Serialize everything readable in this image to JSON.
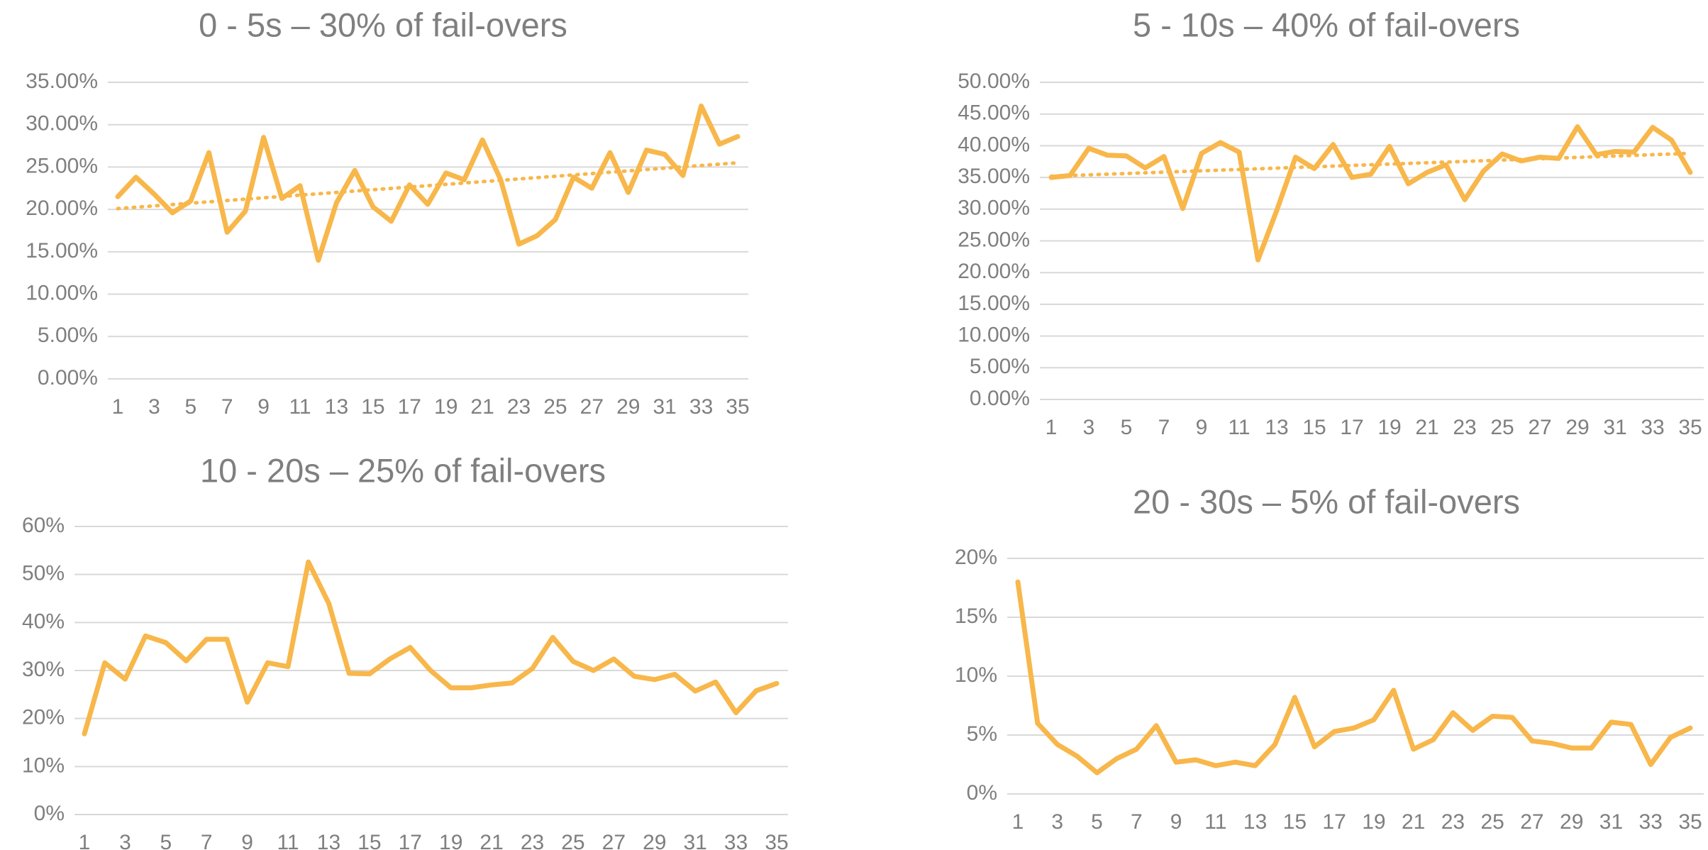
{
  "chart_data": [
    {
      "type": "line",
      "title": "0 - 5s – 30% of fail-overs",
      "categories": [
        1,
        null,
        3,
        null,
        5,
        null,
        7,
        null,
        9,
        null,
        11,
        null,
        13,
        null,
        15,
        null,
        17,
        null,
        19,
        null,
        21,
        null,
        23,
        null,
        25,
        null,
        27,
        null,
        29,
        null,
        31,
        null,
        33,
        null,
        35
      ],
      "values": [
        21.5,
        23.8,
        21.8,
        19.6,
        21.0,
        26.7,
        17.3,
        19.8,
        28.5,
        21.3,
        22.8,
        14.0,
        20.8,
        24.6,
        20.3,
        18.6,
        22.9,
        20.6,
        24.3,
        23.5,
        28.2,
        23.5,
        15.9,
        16.9,
        18.8,
        23.8,
        22.5,
        26.7,
        22.0,
        27.0,
        26.5,
        24.0,
        32.2,
        27.7,
        28.6
      ],
      "color": "#f8b74b",
      "trendline": {
        "start": 20.1,
        "end": 25.5
      },
      "ylim": [
        0,
        35
      ],
      "yticks": [
        {
          "value": 0,
          "label": "0.00%"
        },
        {
          "value": 5,
          "label": "5.00%"
        },
        {
          "value": 10,
          "label": "10.00%"
        },
        {
          "value": 15,
          "label": "15.00%"
        },
        {
          "value": 20,
          "label": "20.00%"
        },
        {
          "value": 25,
          "label": "25.00%"
        },
        {
          "value": 30,
          "label": "30.00%"
        },
        {
          "value": 35,
          "label": "35.00%"
        }
      ],
      "grid": true
    },
    {
      "type": "line",
      "title": "5 - 10s – 40% of fail-overs",
      "categories": [
        1,
        null,
        3,
        null,
        5,
        null,
        7,
        null,
        9,
        null,
        11,
        null,
        13,
        null,
        15,
        null,
        17,
        null,
        19,
        null,
        21,
        null,
        23,
        null,
        25,
        null,
        27,
        null,
        29,
        null,
        31,
        null,
        33,
        null,
        35
      ],
      "values": [
        35.0,
        35.3,
        39.6,
        38.5,
        38.4,
        36.5,
        38.3,
        30.1,
        38.8,
        40.5,
        39.0,
        22.0,
        29.8,
        38.2,
        36.4,
        40.2,
        35.0,
        35.5,
        39.9,
        34.0,
        35.8,
        37.0,
        31.5,
        36.0,
        38.7,
        37.6,
        38.2,
        38.0,
        43.0,
        38.6,
        39.1,
        39.0,
        42.9,
        40.9,
        35.8
      ],
      "color": "#f8b74b",
      "trendline": {
        "start": 35.2,
        "end": 38.8
      },
      "ylim": [
        0,
        50
      ],
      "yticks": [
        {
          "value": 0,
          "label": "0.00%"
        },
        {
          "value": 5,
          "label": "5.00%"
        },
        {
          "value": 10,
          "label": "10.00%"
        },
        {
          "value": 15,
          "label": "15.00%"
        },
        {
          "value": 20,
          "label": "20.00%"
        },
        {
          "value": 25,
          "label": "25.00%"
        },
        {
          "value": 30,
          "label": "30.00%"
        },
        {
          "value": 35,
          "label": "35.00%"
        },
        {
          "value": 40,
          "label": "40.00%"
        },
        {
          "value": 45,
          "label": "45.00%"
        },
        {
          "value": 50,
          "label": "50.00%"
        }
      ],
      "grid": true
    },
    {
      "type": "line",
      "title": "10 - 20s – 25% of fail-overs",
      "categories": [
        1,
        null,
        3,
        null,
        5,
        null,
        7,
        null,
        9,
        null,
        11,
        null,
        13,
        null,
        15,
        null,
        17,
        null,
        19,
        null,
        21,
        null,
        23,
        null,
        25,
        null,
        27,
        null,
        29,
        null,
        31,
        null,
        33,
        null,
        35
      ],
      "values": [
        16.8,
        31.6,
        28.2,
        37.2,
        35.8,
        32.0,
        36.5,
        36.5,
        23.4,
        31.6,
        30.8,
        52.6,
        44.0,
        29.4,
        29.3,
        32.4,
        34.8,
        30.0,
        26.4,
        26.4,
        27.0,
        27.4,
        30.4,
        36.9,
        31.9,
        30.0,
        32.4,
        28.8,
        28.1,
        29.2,
        25.7,
        27.6,
        21.2,
        25.8,
        27.3
      ],
      "color": "#f8b74b",
      "ylim": [
        0,
        60
      ],
      "yticks": [
        {
          "value": 0,
          "label": "0%"
        },
        {
          "value": 10,
          "label": "10%"
        },
        {
          "value": 20,
          "label": "20%"
        },
        {
          "value": 30,
          "label": "30%"
        },
        {
          "value": 40,
          "label": "40%"
        },
        {
          "value": 50,
          "label": "50%"
        },
        {
          "value": 60,
          "label": "60%"
        }
      ],
      "grid": true
    },
    {
      "type": "line",
      "title": "20 - 30s – 5% of fail-overs",
      "categories": [
        1,
        null,
        3,
        null,
        5,
        null,
        7,
        null,
        9,
        null,
        11,
        null,
        13,
        null,
        15,
        null,
        17,
        null,
        19,
        null,
        21,
        null,
        23,
        null,
        25,
        null,
        27,
        null,
        29,
        null,
        31,
        null,
        33,
        null,
        35
      ],
      "values": [
        18.0,
        6.0,
        4.2,
        3.2,
        1.8,
        3.0,
        3.8,
        5.8,
        2.7,
        2.9,
        2.4,
        2.7,
        2.4,
        4.2,
        8.2,
        4.0,
        5.3,
        5.6,
        6.3,
        8.8,
        3.8,
        4.6,
        6.9,
        5.4,
        6.6,
        6.5,
        4.5,
        4.3,
        3.9,
        3.9,
        6.1,
        5.9,
        2.5,
        4.8,
        5.6
      ],
      "color": "#f8b74b",
      "ylim": [
        0,
        20
      ],
      "yticks": [
        {
          "value": 0,
          "label": "0%"
        },
        {
          "value": 5,
          "label": "5%"
        },
        {
          "value": 10,
          "label": "10%"
        },
        {
          "value": 15,
          "label": "15%"
        },
        {
          "value": 20,
          "label": "20%"
        }
      ],
      "grid": true
    }
  ]
}
